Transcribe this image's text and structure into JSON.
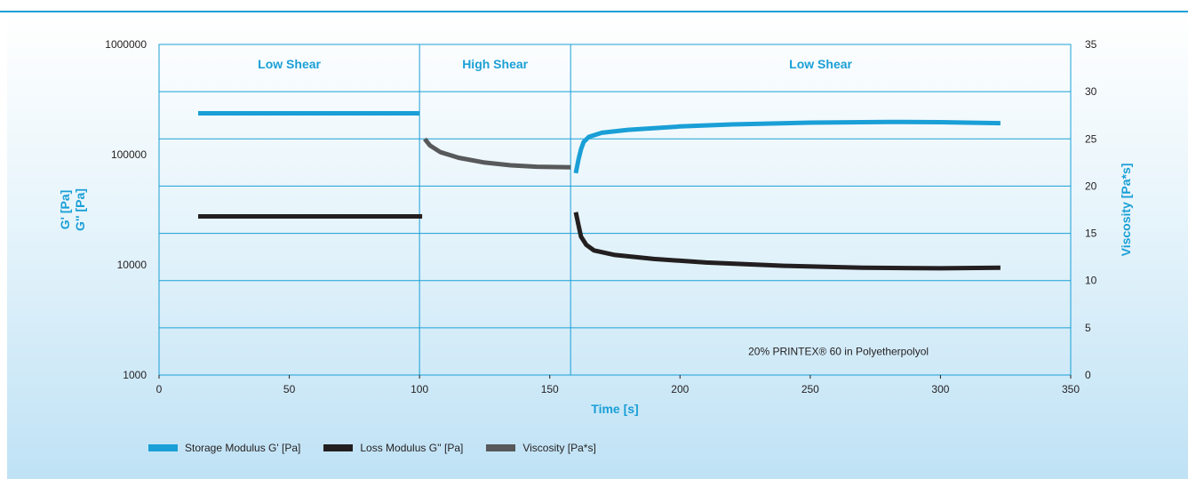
{
  "chart_data": {
    "type": "line",
    "xlabel": "Time [s]",
    "ylabel_left": [
      "G' [Pa]",
      "G'' [Pa]"
    ],
    "ylabel_right": "Viscosity [Pa*s]",
    "xlim": [
      0,
      350
    ],
    "ylim_left": [
      1000,
      1000000
    ],
    "yscale_left": "log",
    "ylim_right": [
      0,
      35
    ],
    "grid": true,
    "legend_position": "bottom-left",
    "x_ticks": [
      "0",
      "50",
      "100",
      "150",
      "200",
      "250",
      "300",
      "350"
    ],
    "y_ticks_left": [
      "1000",
      "10000",
      "100000",
      "1000000"
    ],
    "y_ticks_right": [
      "0",
      "5",
      "10",
      "15",
      "20",
      "25",
      "30",
      "35"
    ],
    "regions": [
      {
        "label": "Low Shear",
        "from": 0,
        "to": 100
      },
      {
        "label": "High Shear",
        "from": 100,
        "to": 158
      },
      {
        "label": "Low Shear",
        "from": 158,
        "to": 350
      }
    ],
    "annotation": "20% PRINTEX® 60 in Polyetherpolyol",
    "series": [
      {
        "name": "Storage Modulus G' [Pa]",
        "axis": "left",
        "color": "#1a9fd6",
        "segments": [
          [
            [
              15,
              237000
            ],
            [
              100,
              237000
            ]
          ],
          [
            [
              160,
              68000
            ],
            [
              161,
              90000
            ],
            [
              162,
              112000
            ],
            [
              163,
              130000
            ],
            [
              165,
              145000
            ],
            [
              170,
              158000
            ],
            [
              180,
              168000
            ],
            [
              200,
              180000
            ],
            [
              220,
              188000
            ],
            [
              250,
              195000
            ],
            [
              280,
              198000
            ],
            [
              300,
              197000
            ],
            [
              323,
              193000
            ]
          ]
        ]
      },
      {
        "name": "Loss Modulus G'' [Pa]",
        "axis": "left",
        "color": "#231f20",
        "segments": [
          [
            [
              15,
              27500
            ],
            [
              101,
              27500
            ]
          ],
          [
            [
              160,
              30000
            ],
            [
              161,
              23000
            ],
            [
              162,
              18000
            ],
            [
              164,
              15200
            ],
            [
              167,
              13500
            ],
            [
              175,
              12300
            ],
            [
              190,
              11300
            ],
            [
              210,
              10500
            ],
            [
              240,
              9800
            ],
            [
              270,
              9400
            ],
            [
              300,
              9300
            ],
            [
              323,
              9400
            ]
          ]
        ]
      },
      {
        "name": "Viscosity [Pa*s]",
        "axis": "right",
        "color": "#58595b",
        "segments": [
          [
            [
              102,
              25
            ],
            [
              104,
              24.3
            ],
            [
              108,
              23.6
            ],
            [
              115,
              23
            ],
            [
              125,
              22.5
            ],
            [
              135,
              22.2
            ],
            [
              145,
              22.05
            ],
            [
              158,
              22
            ]
          ]
        ]
      }
    ]
  }
}
